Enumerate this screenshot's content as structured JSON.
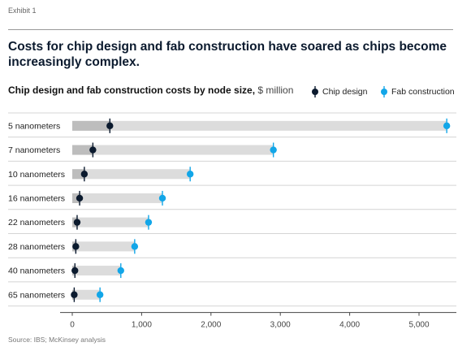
{
  "header": {
    "exhibit": "Exhibit 1",
    "title": "Costs for chip design and fab construction have soared as chips become increasingly complex."
  },
  "chart_data": {
    "type": "dot",
    "title_bold": "Chip design and fab construction costs by node size,",
    "title_unit": " $ million",
    "categories": [
      "5 nanometers",
      "7 nanometers",
      "10 nanometers",
      "16 nanometers",
      "22 nanometers",
      "28 nanometers",
      "40 nanometers",
      "65 nanometers"
    ],
    "series": [
      {
        "name": "Chip design",
        "values": [
          542,
          297,
          174,
          106,
          70,
          51,
          38,
          28
        ],
        "color": "#0b1a2e"
      },
      {
        "name": "Fab construction",
        "values": [
          5400,
          2900,
          1700,
          1300,
          1100,
          900,
          700,
          400
        ],
        "color": "#12a6e8"
      }
    ],
    "xlim": [
      0,
      5500
    ],
    "xticks": [
      0,
      1000,
      2000,
      3000,
      4000,
      5000
    ],
    "xticklabels": [
      "0",
      "1,000",
      "2,000",
      "3,000",
      "4,000",
      "5,000"
    ],
    "grid": false,
    "legend_position": "top-right"
  },
  "footer": {
    "source": "Source: IBS; McKinsey analysis"
  }
}
